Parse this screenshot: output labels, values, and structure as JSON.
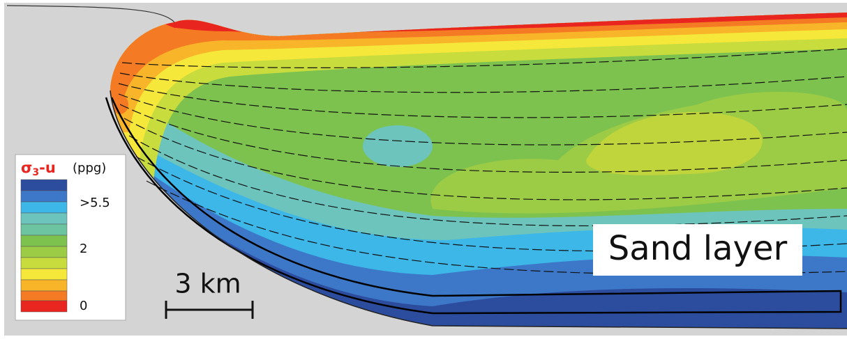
{
  "legend": {
    "symbol": "σ",
    "subscript": "3",
    "suffix": "-u",
    "unit": "(ppg)",
    "labels": [
      ">5.5",
      "2",
      "0"
    ]
  },
  "scale_bar": {
    "label": "3 km"
  },
  "annotation": {
    "label": "Sand layer"
  }
}
